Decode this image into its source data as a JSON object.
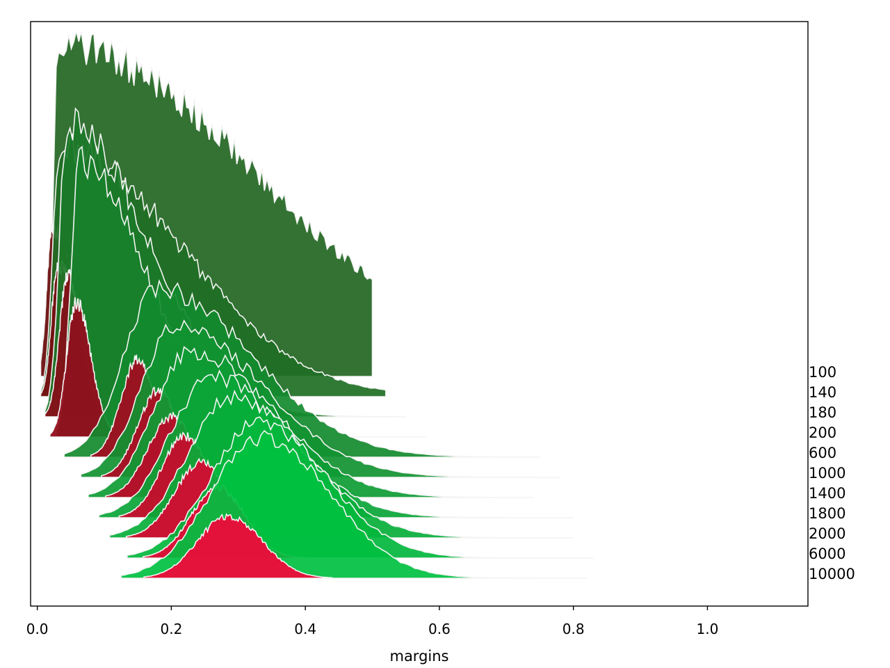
{
  "chart_data": {
    "type": "area",
    "xlabel": "margins",
    "ylabel": "",
    "xlim": [
      -0.01,
      1.15
    ],
    "x_ticks": [
      "0.0",
      "0.2",
      "0.4",
      "0.6",
      "0.8",
      "1.0"
    ],
    "x_tick_values": [
      0.0,
      0.2,
      0.4,
      0.6,
      0.8,
      1.0
    ],
    "grid": false,
    "rows": [
      {
        "label": "100",
        "green": {
          "mode": 0.03,
          "peak": 0.61,
          "left": 0.006,
          "right": 0.3,
          "x_end": 0.5
        },
        "red": {
          "mode": 0.022,
          "peak": 0.27,
          "left": 0.008,
          "right": 0.035,
          "x_end": 0.07
        }
      },
      {
        "label": "140",
        "green": {
          "mode": 0.033,
          "peak": 0.46,
          "left": 0.01,
          "right": 0.18,
          "x_end": 0.52
        },
        "red": {
          "mode": 0.03,
          "peak": 0.24,
          "left": 0.009,
          "right": 0.04,
          "x_end": 0.08
        }
      },
      {
        "label": "180",
        "green": {
          "mode": 0.045,
          "peak": 0.54,
          "left": 0.012,
          "right": 0.12,
          "x_end": 0.55
        },
        "red": {
          "mode": 0.045,
          "peak": 0.26,
          "left": 0.012,
          "right": 0.02,
          "x_end": 0.09
        }
      },
      {
        "label": "200",
        "green": {
          "mode": 0.062,
          "peak": 0.51,
          "left": 0.012,
          "right": 0.1,
          "x_end": 0.58
        },
        "red": {
          "mode": 0.058,
          "peak": 0.25,
          "left": 0.014,
          "right": 0.022,
          "x_end": 0.12
        }
      },
      {
        "label": "600",
        "green": {
          "mode": 0.18,
          "peak": 0.31,
          "left": 0.05,
          "right": 0.14,
          "x_end": 0.75
        },
        "red": {
          "mode": 0.15,
          "peak": 0.18,
          "left": 0.025,
          "right": 0.025,
          "x_end": 0.25
        }
      },
      {
        "label": "1000",
        "green": {
          "mode": 0.205,
          "peak": 0.28,
          "left": 0.05,
          "right": 0.13,
          "x_end": 0.78
        },
        "red": {
          "mode": 0.18,
          "peak": 0.16,
          "left": 0.03,
          "right": 0.03,
          "x_end": 0.3
        }
      },
      {
        "label": "1400",
        "green": {
          "mode": 0.23,
          "peak": 0.27,
          "left": 0.055,
          "right": 0.12,
          "x_end": 0.74
        },
        "red": {
          "mode": 0.2,
          "peak": 0.15,
          "left": 0.035,
          "right": 0.035,
          "x_end": 0.34
        }
      },
      {
        "label": "1800",
        "green": {
          "mode": 0.26,
          "peak": 0.26,
          "left": 0.06,
          "right": 0.11,
          "x_end": 0.8
        },
        "red": {
          "mode": 0.22,
          "peak": 0.15,
          "left": 0.035,
          "right": 0.035,
          "x_end": 0.36
        }
      },
      {
        "label": "2000",
        "green": {
          "mode": 0.29,
          "peak": 0.26,
          "left": 0.065,
          "right": 0.11,
          "x_end": 0.8
        },
        "red": {
          "mode": 0.245,
          "peak": 0.14,
          "left": 0.04,
          "right": 0.04,
          "x_end": 0.38
        }
      },
      {
        "label": "6000",
        "green": {
          "mode": 0.33,
          "peak": 0.25,
          "left": 0.07,
          "right": 0.1,
          "x_end": 0.83
        },
        "red": {
          "mode": 0.27,
          "peak": 0.13,
          "left": 0.04,
          "right": 0.04,
          "x_end": 0.4
        }
      },
      {
        "label": "10000",
        "green": {
          "mode": 0.335,
          "peak": 0.26,
          "left": 0.075,
          "right": 0.1,
          "x_end": 0.82
        },
        "red": {
          "mode": 0.285,
          "peak": 0.115,
          "left": 0.045,
          "right": 0.05,
          "x_end": 0.44
        }
      }
    ],
    "colors": {
      "green_back": "#226622",
      "green_front": "#00c040",
      "red_back": "#6b1010",
      "red_front": "#ee0a3a",
      "outline": "#f4f4f4"
    }
  }
}
